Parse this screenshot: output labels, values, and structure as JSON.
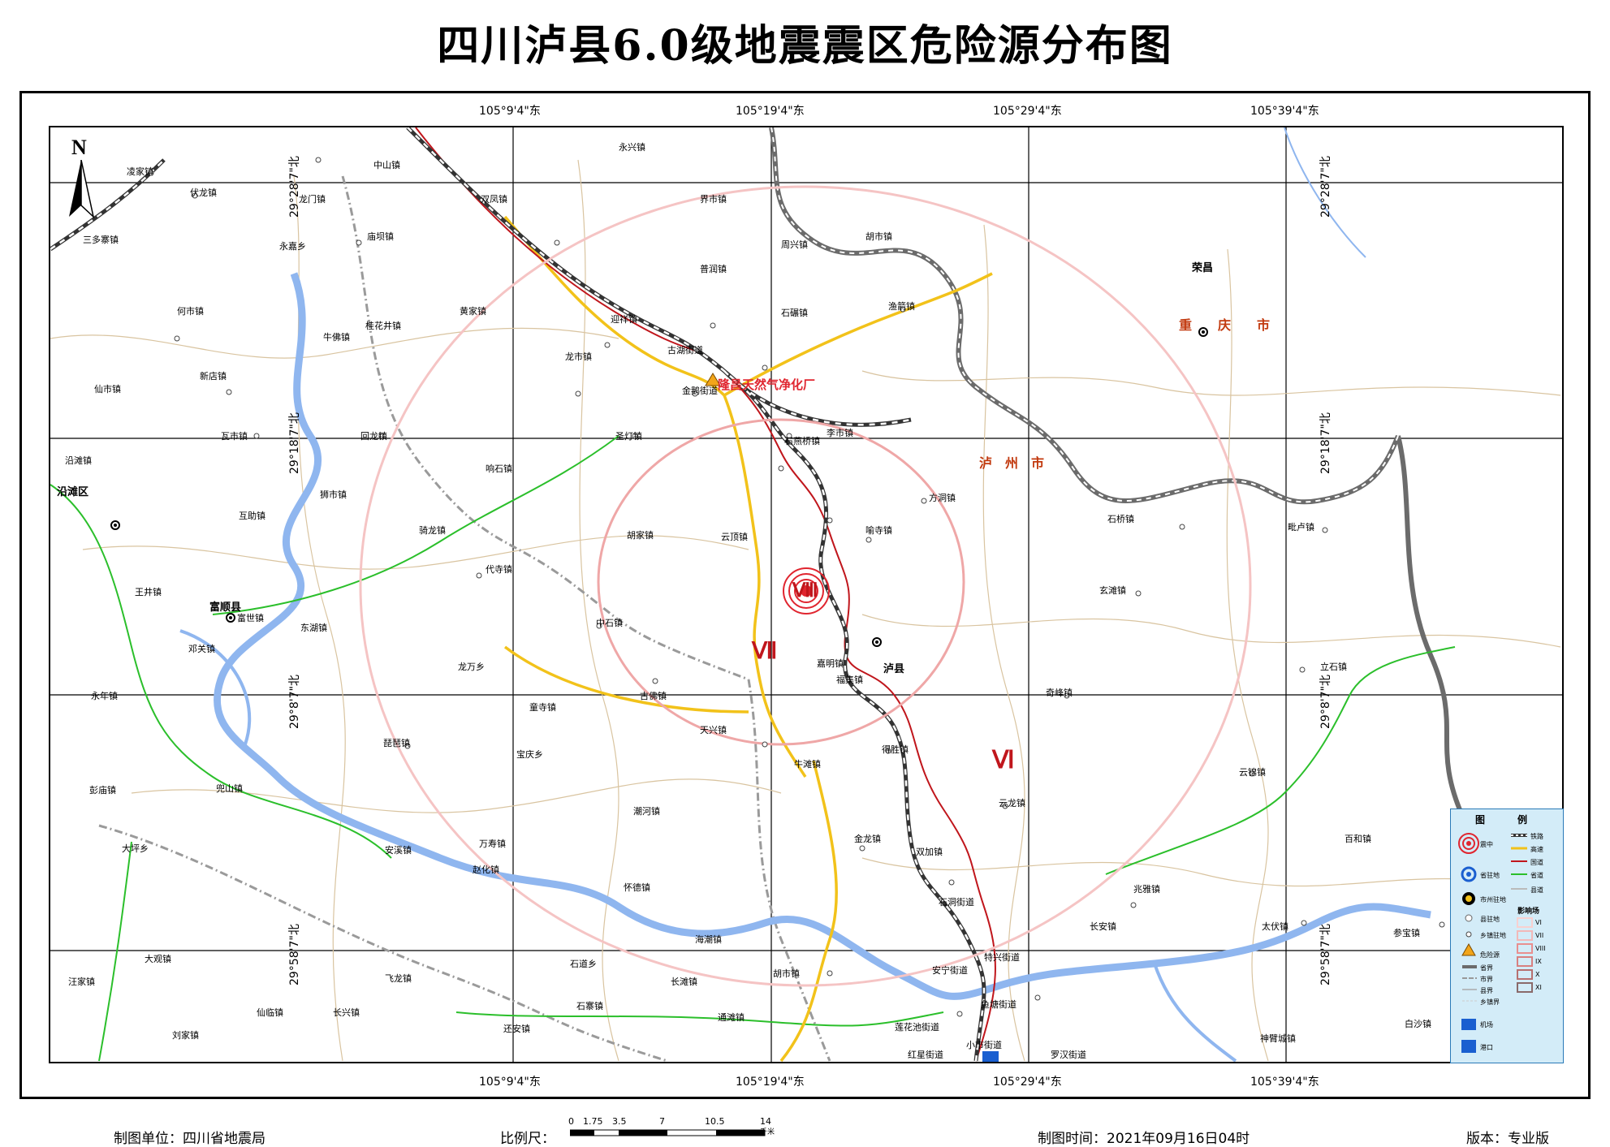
{
  "title": "四川泸县6.0级地震震区危险源分布图",
  "coords": {
    "lon_labels": [
      "105°9'4\"东",
      "105°19'4\"东",
      "105°29'4\"东",
      "105°39'4\"东"
    ],
    "lat_labels": [
      "29°28'7\"北",
      "29°18'7\"北",
      "29°8'7\"北",
      "29°58'7\"北"
    ]
  },
  "map": {
    "north_label": "N",
    "hazard_label": "隆昌天然气净化厂",
    "intensity_labels": [
      "Ⅷ",
      "Ⅶ",
      "Ⅵ"
    ],
    "region_labels": {
      "chongqing": "重　　庆　　市",
      "luzhou": "泸　州　市",
      "rongchang": "荣昌",
      "luxian": "泸县",
      "fushun": "富顺县",
      "yantan": "沿滩区"
    },
    "towns": [
      "凌家镇",
      "伏龙镇",
      "龙门镇",
      "中山镇",
      "永兴镇",
      "双凤镇",
      "界市镇",
      "周兴镇",
      "普润镇",
      "石碾镇",
      "渔箭镇",
      "迎祥镇",
      "龙市镇",
      "古湖街道",
      "金鹅街道",
      "李市镇",
      "庙坝镇",
      "三多寨镇",
      "永嘉乡",
      "何市镇",
      "桂花井镇",
      "黄家镇",
      "牛佛镇",
      "新店镇",
      "仙市镇",
      "瓦市镇",
      "回龙镇",
      "胡市镇",
      "沿滩镇",
      "圣灯镇",
      "响石镇",
      "石燕桥镇",
      "方洞镇",
      "互助镇",
      "狮市镇",
      "骑龙镇",
      "胡家镇",
      "云顶镇",
      "喻寺镇",
      "石桥镇",
      "毗卢镇",
      "代寺镇",
      "玄滩镇",
      "王井镇",
      "富世镇",
      "东湖镇",
      "中石镇",
      "福集镇",
      "兆雅镇",
      "邓关镇",
      "龙万乡",
      "古佛镇",
      "嘉明镇",
      "奇峰镇",
      "立石镇",
      "永年镇",
      "童寺镇",
      "天兴镇",
      "得胜镇",
      "琵琶镇",
      "宝庆乡",
      "牛滩镇",
      "云锦镇",
      "彭庙镇",
      "兜山镇",
      "潮河镇",
      "金龙镇",
      "云龙镇",
      "大坪乡",
      "安溪镇",
      "万寿镇",
      "百和镇",
      "赵化镇",
      "怀德镇",
      "双加镇",
      "石洞街道",
      "长安镇",
      "太伏镇",
      "大观镇",
      "海潮镇",
      "参宝镇",
      "石道乡",
      "特兴街道",
      "汪家镇",
      "飞龙镇",
      "长滩镇",
      "胡市镇",
      "安宁街道",
      "仙临镇",
      "长兴镇",
      "石寨镇",
      "通滩镇",
      "鱼塘街道",
      "刘家镇",
      "还安镇",
      "莲花池街道",
      "白沙镇",
      "小市街道",
      "神臂城镇",
      "红星街道",
      "罗汉街道"
    ]
  },
  "legend": {
    "title": "图　例",
    "items": [
      {
        "label": "震中",
        "icon": "epicenter-icon"
      },
      {
        "label": "铁路",
        "icon": "railway-icon"
      },
      {
        "label": "高速",
        "icon": "expressway-icon"
      },
      {
        "label": "国道",
        "icon": "national-road-icon"
      },
      {
        "label": "省驻地",
        "icon": "province-seat-icon"
      },
      {
        "label": "省道",
        "icon": "provincial-road-icon"
      },
      {
        "label": "市州驻地",
        "icon": "city-seat-icon"
      },
      {
        "label": "县道",
        "icon": "county-road-icon"
      },
      {
        "label": "县驻地",
        "icon": "county-seat-icon"
      },
      {
        "label": "影响场",
        "icon": "intensity-field-icon"
      },
      {
        "label": "乡镇驻地",
        "icon": "town-seat-icon"
      },
      {
        "label": "危险源",
        "icon": "hazard-icon"
      },
      {
        "label": "省界",
        "icon": "province-border-icon"
      },
      {
        "label": "市界",
        "icon": "city-border-icon"
      },
      {
        "label": "县界",
        "icon": "county-border-icon"
      },
      {
        "label": "乡镇界",
        "icon": "town-border-icon"
      },
      {
        "label": "机场",
        "icon": "airport-icon"
      },
      {
        "label": "港口",
        "icon": "port-icon"
      }
    ],
    "intensity": [
      "VI",
      "VII",
      "VIII",
      "IX",
      "X",
      "XI"
    ]
  },
  "footer": {
    "unit": "制图单位：四川省地震局",
    "scale_label": "比例尺：",
    "scale_ticks": [
      "0",
      "1.75",
      "3.5",
      "7",
      "10.5",
      "14"
    ],
    "scale_unit": "千米",
    "time": "制图时间：2021年09月16日04时",
    "version": "版本：专业版"
  },
  "colors": {
    "epicenter": "#e0252f",
    "expressway": "#f2c21a",
    "national_road": "#c0161c",
    "provincial_road": "#2bbf2b",
    "river": "#8fb6ef",
    "intensity_circle": "#f0a4a4",
    "legend_bg": "#d3ecf8"
  }
}
